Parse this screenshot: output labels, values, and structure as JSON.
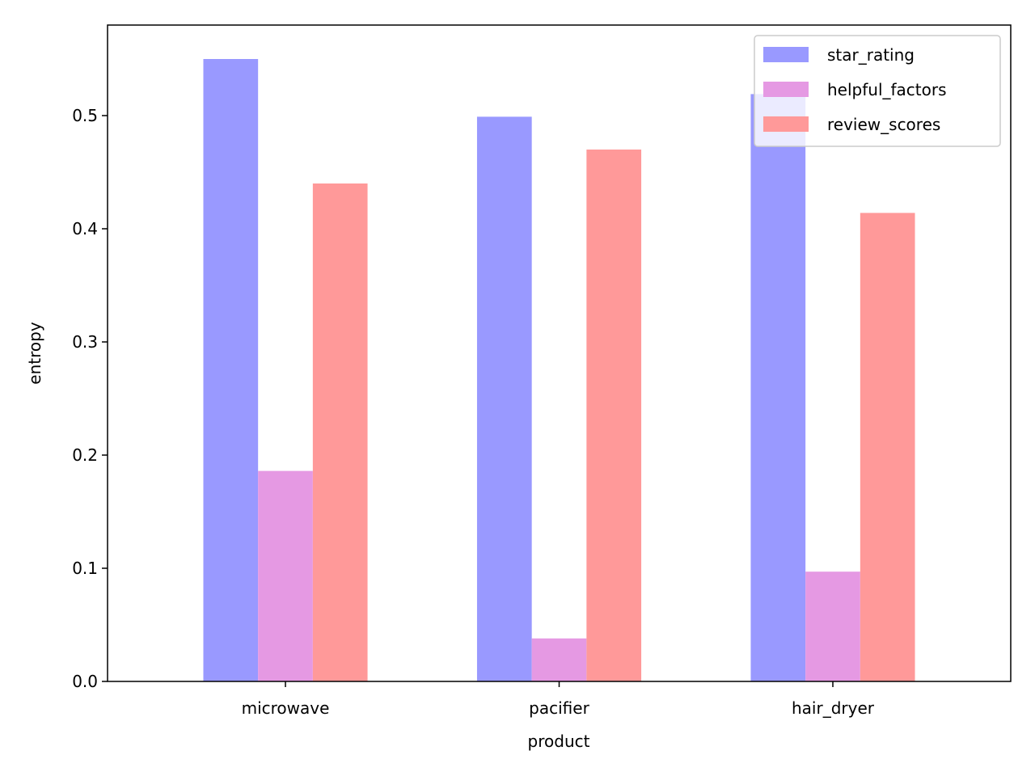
{
  "chart_data": {
    "type": "bar",
    "title": "",
    "xlabel": "product",
    "ylabel": "entropy",
    "categories": [
      "microwave",
      "pacifier",
      "hair_dryer"
    ],
    "series": [
      {
        "name": "star_rating",
        "values": [
          0.55,
          0.499,
          0.519
        ],
        "color": "#9999ff"
      },
      {
        "name": "helpful_factors",
        "values": [
          0.186,
          0.038,
          0.097
        ],
        "color": "#e599e3"
      },
      {
        "name": "review_scores",
        "values": [
          0.44,
          0.47,
          0.414
        ],
        "color": "#ff9999"
      }
    ],
    "ylim": [
      0,
      0.58
    ],
    "yticks": [
      "0.0",
      "0.1",
      "0.2",
      "0.3",
      "0.4",
      "0.5"
    ],
    "grid": false,
    "legend_position": "top-right"
  }
}
